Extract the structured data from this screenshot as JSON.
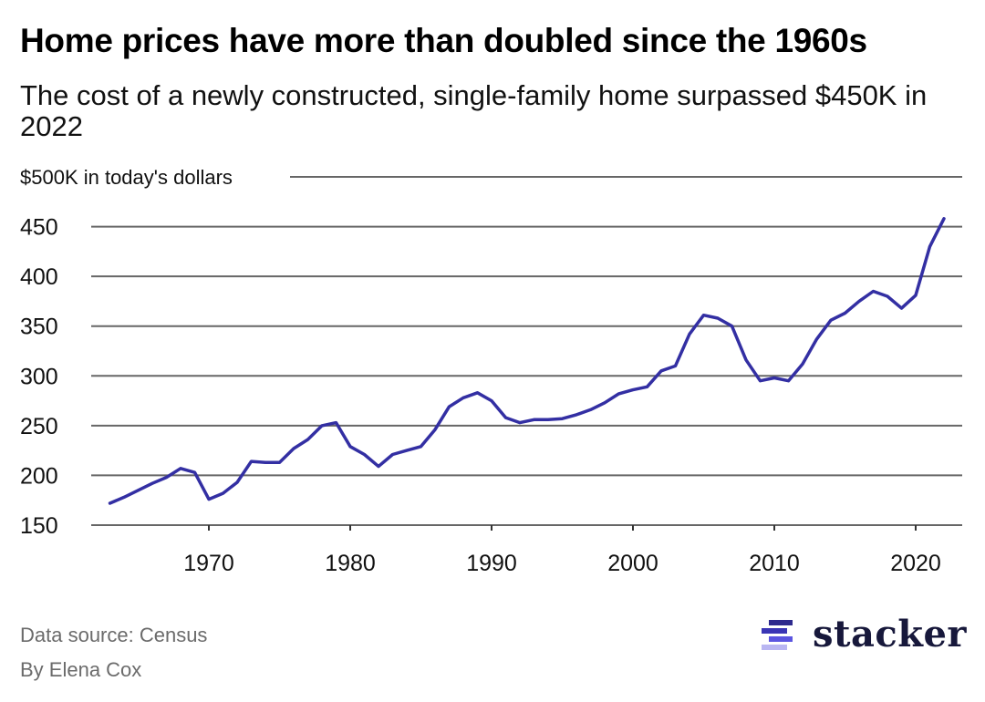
{
  "title": "Home prices have more than doubled since the 1960s",
  "subtitle": "The cost of a newly constructed, single-family home surpassed $450K in 2022",
  "footer": {
    "source": "Data source: Census",
    "byline": "By Elena Cox",
    "logo_text": "stacker"
  },
  "colors": {
    "line": "#332fa3",
    "grid": "#666666",
    "logo_dark": "#2e2a8e",
    "logo_mid": "#5b55e0",
    "logo_light": "#b9b6f2"
  },
  "chart_data": {
    "type": "line",
    "title": "Home prices have more than doubled since the 1960s",
    "ylabel": "$500K in today's dollars",
    "ylim": [
      150,
      500
    ],
    "xlim": [
      1963,
      2022
    ],
    "grid": true,
    "y_ticks": [
      "150",
      "200",
      "250",
      "300",
      "350",
      "400",
      "450"
    ],
    "y_tick_values": [
      150,
      200,
      250,
      300,
      350,
      400,
      450
    ],
    "top_tick_label": "$500K in today's dollars",
    "x_ticks": [
      "1970",
      "1980",
      "1990",
      "2000",
      "2010",
      "2020"
    ],
    "x_tick_values": [
      1970,
      1980,
      1990,
      2000,
      2010,
      2020
    ],
    "x": [
      1963,
      1964,
      1965,
      1966,
      1967,
      1968,
      1969,
      1970,
      1971,
      1972,
      1973,
      1974,
      1975,
      1976,
      1977,
      1978,
      1979,
      1980,
      1981,
      1982,
      1983,
      1984,
      1985,
      1986,
      1987,
      1988,
      1989,
      1990,
      1991,
      1992,
      1993,
      1994,
      1995,
      1996,
      1997,
      1998,
      1999,
      2000,
      2001,
      2002,
      2003,
      2004,
      2005,
      2006,
      2007,
      2008,
      2009,
      2010,
      2011,
      2012,
      2013,
      2014,
      2015,
      2016,
      2017,
      2018,
      2019,
      2020,
      2021,
      2022
    ],
    "series": [
      {
        "values": [
          172,
          178,
          185,
          192,
          198,
          207,
          203,
          176,
          182,
          193,
          214,
          213,
          213,
          227,
          236,
          250,
          253,
          229,
          221,
          209,
          221,
          225,
          229,
          246,
          269,
          278,
          283,
          275,
          258,
          253,
          256,
          256,
          257,
          261,
          266,
          273,
          282,
          286,
          289,
          305,
          310,
          342,
          361,
          358,
          350,
          316,
          295,
          298,
          295,
          312,
          337,
          356,
          363,
          375,
          385,
          380,
          368,
          381,
          430,
          458
        ]
      }
    ]
  }
}
